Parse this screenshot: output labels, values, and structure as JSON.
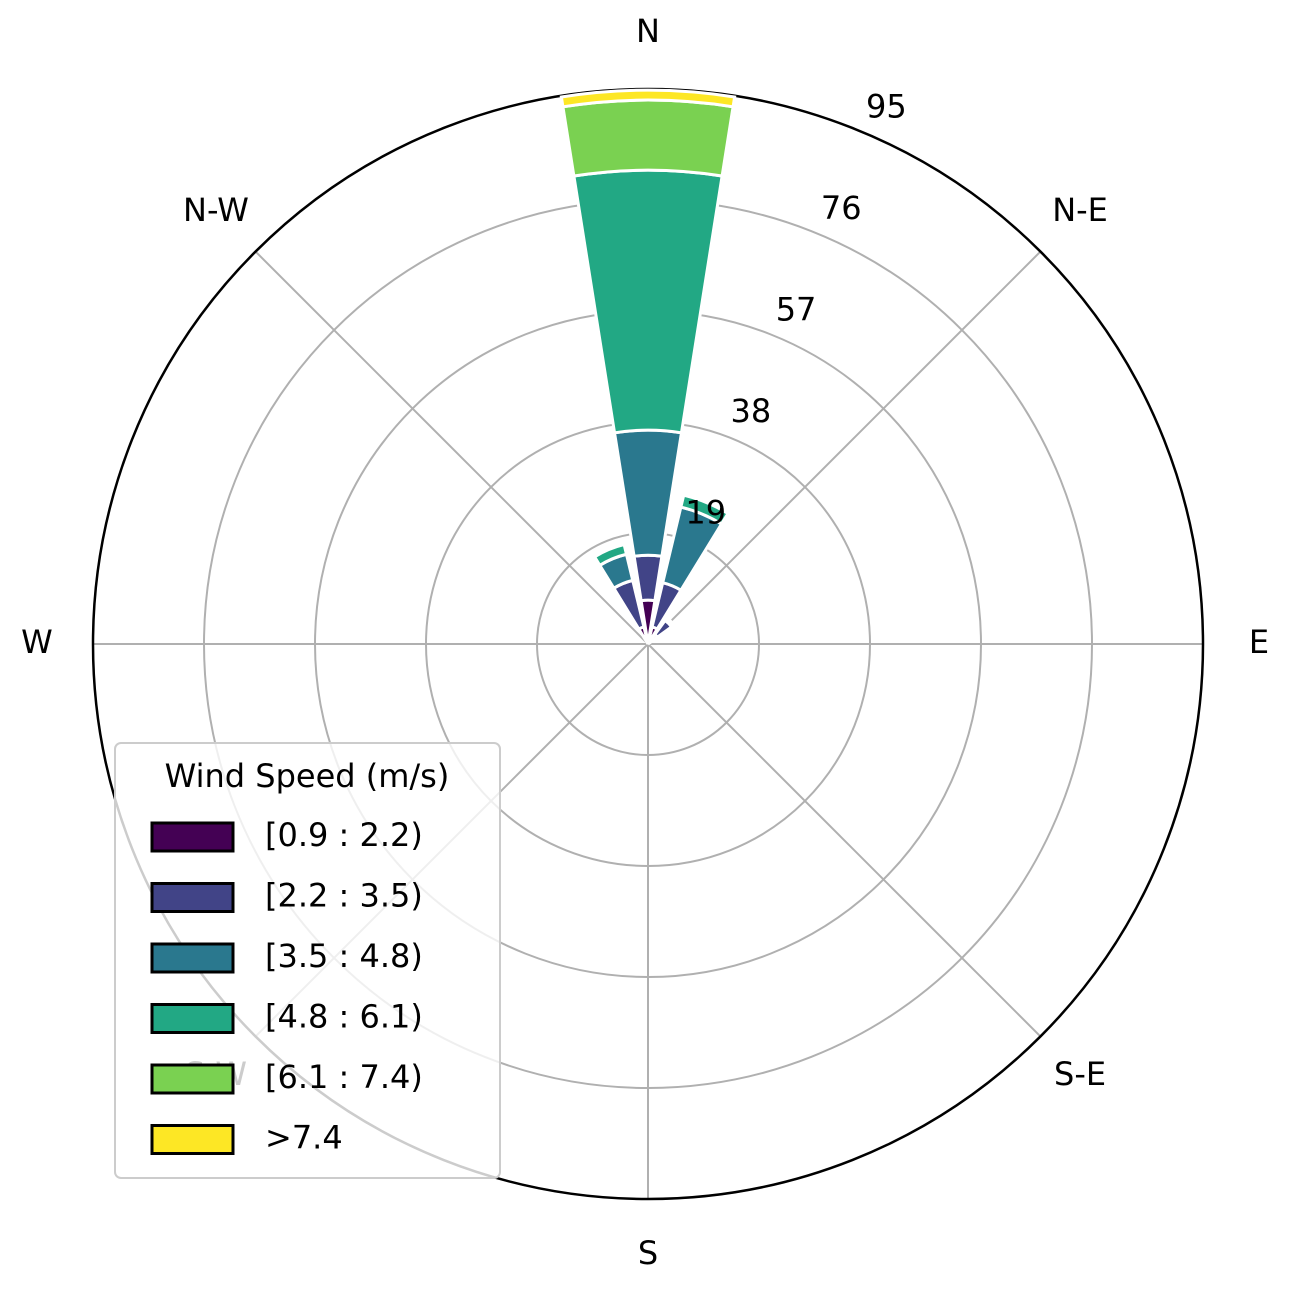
{
  "chart_data": {
    "type": "windrose",
    "x": [
      0,
      22.5,
      45,
      67.5,
      90,
      112.5,
      135,
      157.5,
      180,
      202.5,
      225,
      247.5,
      270,
      292.5,
      315,
      337.5
    ],
    "xticks": [
      {
        "value": 0,
        "label": "N"
      },
      {
        "value": 45,
        "label": "N-E"
      },
      {
        "value": 90,
        "label": "E"
      },
      {
        "value": 135,
        "label": "S-E"
      },
      {
        "value": 180,
        "label": "S"
      },
      {
        "value": 225,
        "label": "S-W"
      },
      {
        "value": 270,
        "label": "W"
      },
      {
        "value": 315,
        "label": "N-W"
      }
    ],
    "ylim": [
      0,
      95
    ],
    "yticks": [
      19,
      38,
      57,
      76,
      95
    ],
    "grid": true,
    "legend_title": "Wind Speed (m/s)",
    "legend_position": "lower left",
    "series": [
      {
        "name": "[0.9 : 2.2)",
        "color": "#440154",
        "values": [
          7.5,
          3,
          2,
          0,
          0,
          0,
          0,
          0,
          0,
          0,
          0,
          0,
          0,
          0,
          0,
          3
        ]
      },
      {
        "name": "[2.2 : 3.5)",
        "color": "#414487",
        "values": [
          7.7,
          7.8,
          3,
          0,
          0,
          0,
          0,
          0,
          0,
          0,
          0,
          0,
          0,
          0,
          0,
          8.2
        ]
      },
      {
        "name": "[3.5 : 4.8)",
        "color": "#2a788e",
        "values": [
          21.4,
          13.3,
          0.5,
          0,
          0,
          0,
          0,
          0,
          0,
          0,
          0,
          0,
          0,
          0,
          0,
          4.6
        ]
      },
      {
        "name": "[4.8 : 6.1)",
        "color": "#22a884",
        "values": [
          44.5,
          2.1,
          0,
          0,
          0,
          0,
          0,
          0,
          0,
          0,
          0,
          0,
          0,
          0,
          0,
          1.7
        ]
      },
      {
        "name": "[6.1 : 7.4)",
        "color": "#7ad151",
        "values": [
          12,
          0,
          0,
          0,
          0,
          0,
          0,
          0,
          0,
          0,
          0,
          0,
          0,
          0,
          0,
          0
        ]
      },
      {
        "name": ">7.4",
        "color": "#fde725",
        "values": [
          1.7,
          0,
          0,
          0,
          0,
          0,
          0,
          0,
          0,
          0,
          0,
          0,
          0,
          0,
          0,
          0
        ]
      }
    ]
  }
}
